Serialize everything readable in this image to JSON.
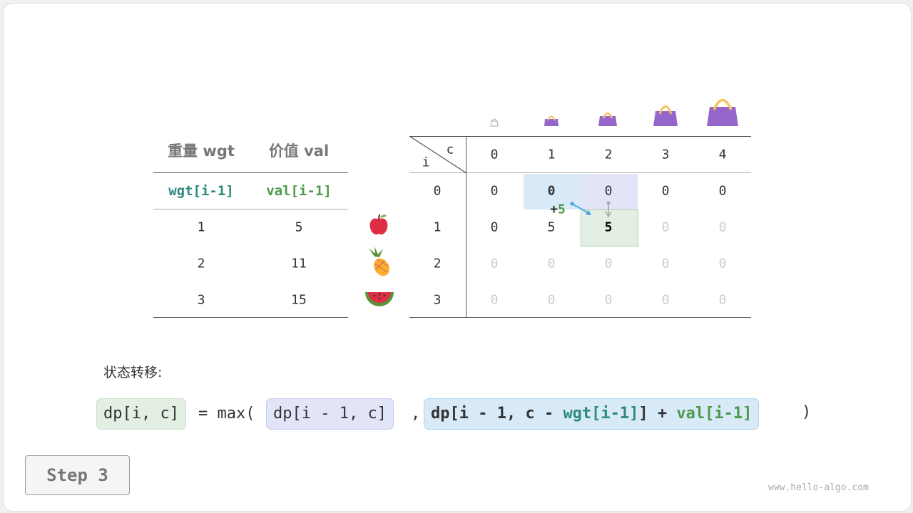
{
  "left_table": {
    "headers": [
      "重量 wgt",
      "价值 val"
    ],
    "subheaders": [
      "wgt[i-1]",
      "val[i-1]"
    ],
    "rows": [
      [
        "1",
        "5"
      ],
      [
        "2",
        "11"
      ],
      [
        "3",
        "15"
      ]
    ],
    "fruits": [
      "apple-icon",
      "pineapple-icon",
      "watermelon-icon"
    ]
  },
  "dp_table": {
    "corner_c": "c",
    "corner_i": "i",
    "col_headers": [
      "0",
      "1",
      "2",
      "3",
      "4"
    ],
    "row_headers": [
      "0",
      "1",
      "2",
      "3"
    ],
    "cells": [
      [
        "0",
        "0",
        "0",
        "0",
        "0"
      ],
      [
        "0",
        "5",
        "5",
        "0",
        "0"
      ],
      [
        "0",
        "0",
        "0",
        "0",
        "0"
      ],
      [
        "0",
        "0",
        "0",
        "0",
        "0"
      ]
    ],
    "annotation": {
      "plus": "+",
      "value": "5"
    },
    "colors": {
      "blue": "#d8eaf8",
      "purple": "#e2e4f8",
      "green": "#e2efe2"
    }
  },
  "formula": {
    "label": "状态转移:",
    "lhs": "dp[i, c]",
    "eq": "= max(",
    "opt1": "dp[i - 1, c]",
    "comma": ",",
    "opt2_a": "dp[i - 1, c - ",
    "opt2_wgt": "wgt[i-1]",
    "opt2_b": "] + ",
    "opt2_val": "val[i-1]",
    "close": ")"
  },
  "step_button": "Step 3",
  "watermark": "www.hello-algo.com",
  "colors": {
    "teal": "#2d8a7e",
    "green": "#4b9a4b",
    "bag": "#9566c9",
    "handle": "#f7c160"
  }
}
